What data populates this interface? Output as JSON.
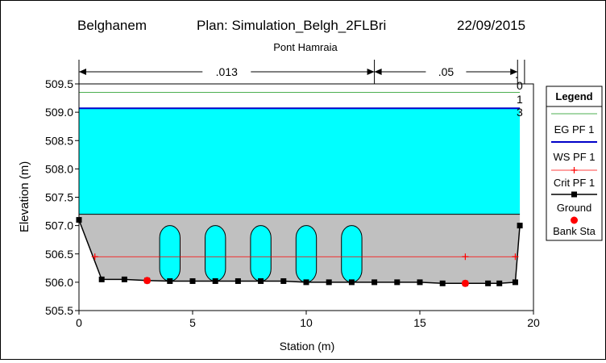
{
  "chart_data": {
    "type": "cross-section",
    "header": {
      "project": "Belghanem",
      "plan": "Plan: Simulation_Belgh_2FLBri",
      "date": "22/09/2015"
    },
    "title": "Pont Hamraia",
    "xlabel": "Station (m)",
    "ylabel": "Elevation (m)",
    "xlim": [
      0,
      20
    ],
    "ylim": [
      505.5,
      509.5
    ],
    "xticks": [
      0,
      5,
      10,
      15,
      20
    ],
    "yticks": [
      505.5,
      506.0,
      506.5,
      507.0,
      507.5,
      508.0,
      508.5,
      509.0,
      509.5
    ],
    "manning": [
      {
        "label": ".013",
        "from": 0,
        "to": 13
      },
      {
        "label": ".05",
        "from": 13,
        "to": 19.3
      },
      {
        "label": ".0 1 3",
        "from": 19.3,
        "to": 19.5
      }
    ],
    "manning_last_chars": [
      ".0",
      "1",
      "3"
    ],
    "eg_elevation": 509.35,
    "ws_elevation": 509.07,
    "crit_elevation": 506.45,
    "bridge_low_chord": 507.2,
    "ground": {
      "x": [
        0,
        1,
        2,
        3,
        4,
        5,
        6,
        7,
        8,
        9,
        10,
        11,
        12,
        13,
        14,
        15,
        16,
        17,
        18,
        18.5,
        19.2,
        19.4
      ],
      "y": [
        507.1,
        506.05,
        506.05,
        506.03,
        506.02,
        506.02,
        506.02,
        506.02,
        506.02,
        506.02,
        506.0,
        506.0,
        506.0,
        506.0,
        506.0,
        506.0,
        505.98,
        505.98,
        505.98,
        505.98,
        506.0,
        507.0
      ]
    },
    "crit_points": {
      "x": [
        0.7,
        17,
        19.2
      ],
      "y": [
        506.45,
        506.45,
        506.45
      ]
    },
    "bank_stations": {
      "x": [
        3,
        17
      ],
      "y": [
        506.03,
        505.98
      ]
    },
    "piers": [
      {
        "x": 4,
        "bottom": 506.02,
        "top": 507.0
      },
      {
        "x": 6,
        "bottom": 506.02,
        "top": 507.0
      },
      {
        "x": 8,
        "bottom": 506.02,
        "top": 507.0
      },
      {
        "x": 10,
        "bottom": 506.0,
        "top": 507.0
      },
      {
        "x": 12,
        "bottom": 506.0,
        "top": 507.0
      }
    ],
    "pier_width": 0.9,
    "legend": {
      "title": "Legend",
      "placement": "right",
      "entries": [
        "EG PF 1",
        "WS PF 1",
        "Crit PF 1",
        "Ground",
        "Bank Sta"
      ]
    },
    "colors": {
      "eg": "#4caf50",
      "ws": "#0000c8",
      "water": "#00ffff",
      "crit": "#ff0000",
      "ground": "#000000",
      "bridge": "#c0c0c0",
      "bank": "#ff0000"
    }
  }
}
